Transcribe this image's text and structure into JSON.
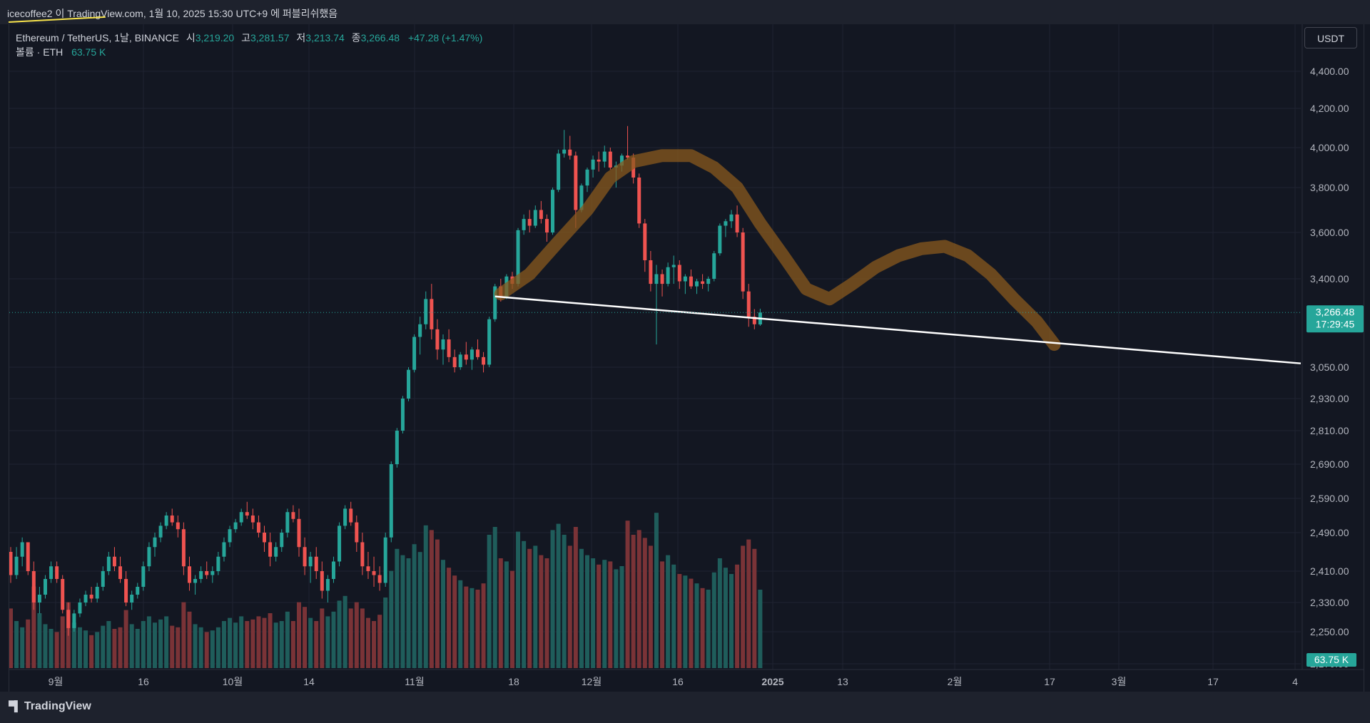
{
  "header": {
    "published_text": "icecoffee2 이 TradingView.com, 1월 10, 2025 15:30 UTC+9 에 퍼블리쉬했음"
  },
  "legend": {
    "symbol": "Ethereum / TetherUS, 1날, BINANCE",
    "open_label": "시",
    "open_value": "3,219.20",
    "high_label": "고",
    "high_value": "3,281.57",
    "low_label": "저",
    "low_value": "3,213.74",
    "close_label": "종",
    "close_value": "3,266.48",
    "change": "+47.28 (+1.47%)",
    "volume_label": "볼륨 · ETH",
    "volume_value": "63.75 K"
  },
  "currency_button": "USDT",
  "footer": {
    "brand": "TradingView"
  },
  "colors": {
    "up": "#26a69a",
    "down": "#ef5350",
    "background": "#131722",
    "grid": "#1f2331",
    "trendline": "#ffffff",
    "pattern": "#8a5a1e"
  },
  "chart_data": {
    "type": "candlestick",
    "price_axis": {
      "ticks": [
        4400,
        4200,
        4000,
        3800,
        3600,
        3400,
        3050,
        2930,
        2810,
        2690,
        2590,
        2490,
        2410,
        2330,
        2250,
        2170
      ],
      "tick_labels": [
        "4,400.00",
        "4,200.00",
        "4,000.00",
        "3,800.00",
        "3,600.00",
        "3,400.00",
        "3,050.00",
        "2,930.00",
        "2,810.00",
        "2,690.00",
        "2,590.00",
        "2,490.00",
        "2,410.00",
        "2,330.00",
        "2,250.00",
        "2,170.00"
      ]
    },
    "last_price": {
      "value": 3266.48,
      "label": "3,266.48",
      "countdown": "17:29:45"
    },
    "volume_badge": "63.75 K",
    "time_axis": {
      "labels": [
        "9월",
        "16",
        "10월",
        "14",
        "11월",
        "18",
        "12월",
        "16",
        "2025",
        "13",
        "2월",
        "17",
        "3월",
        "17",
        "4"
      ],
      "bold": [
        "2025"
      ]
    },
    "candles": [
      [
        2450,
        2460,
        2380,
        2400,
        380
      ],
      [
        2400,
        2460,
        2390,
        2440,
        300
      ],
      [
        2440,
        2480,
        2420,
        2470,
        260
      ],
      [
        2470,
        2470,
        2400,
        2410,
        310
      ],
      [
        2410,
        2430,
        2310,
        2330,
        520
      ],
      [
        2330,
        2370,
        2300,
        2350,
        350
      ],
      [
        2350,
        2400,
        2340,
        2390,
        280
      ],
      [
        2390,
        2430,
        2380,
        2420,
        250
      ],
      [
        2420,
        2430,
        2380,
        2390,
        230
      ],
      [
        2390,
        2400,
        2300,
        2310,
        330
      ],
      [
        2310,
        2330,
        2240,
        2260,
        420
      ],
      [
        2260,
        2310,
        2250,
        2300,
        290
      ],
      [
        2300,
        2340,
        2290,
        2330,
        260
      ],
      [
        2330,
        2360,
        2320,
        2350,
        240
      ],
      [
        2350,
        2370,
        2330,
        2340,
        210
      ],
      [
        2340,
        2380,
        2330,
        2370,
        230
      ],
      [
        2370,
        2420,
        2360,
        2410,
        270
      ],
      [
        2410,
        2450,
        2400,
        2440,
        300
      ],
      [
        2440,
        2460,
        2410,
        2420,
        250
      ],
      [
        2420,
        2440,
        2380,
        2390,
        260
      ],
      [
        2390,
        2410,
        2320,
        2330,
        370
      ],
      [
        2330,
        2360,
        2310,
        2350,
        280
      ],
      [
        2350,
        2380,
        2340,
        2370,
        250
      ],
      [
        2370,
        2430,
        2360,
        2420,
        300
      ],
      [
        2420,
        2470,
        2410,
        2460,
        330
      ],
      [
        2460,
        2490,
        2440,
        2480,
        290
      ],
      [
        2480,
        2520,
        2470,
        2510,
        310
      ],
      [
        2510,
        2550,
        2500,
        2540,
        330
      ],
      [
        2540,
        2560,
        2510,
        2520,
        270
      ],
      [
        2520,
        2540,
        2480,
        2500,
        260
      ],
      [
        2500,
        2520,
        2400,
        2420,
        420
      ],
      [
        2420,
        2440,
        2360,
        2380,
        360
      ],
      [
        2380,
        2400,
        2350,
        2390,
        280
      ],
      [
        2390,
        2420,
        2380,
        2410,
        260
      ],
      [
        2410,
        2430,
        2390,
        2400,
        230
      ],
      [
        2400,
        2420,
        2380,
        2410,
        240
      ],
      [
        2410,
        2450,
        2400,
        2440,
        260
      ],
      [
        2440,
        2480,
        2430,
        2470,
        300
      ],
      [
        2470,
        2510,
        2460,
        2500,
        320
      ],
      [
        2500,
        2530,
        2490,
        2520,
        290
      ],
      [
        2520,
        2560,
        2510,
        2550,
        330
      ],
      [
        2550,
        2580,
        2530,
        2540,
        300
      ],
      [
        2540,
        2560,
        2500,
        2520,
        310
      ],
      [
        2520,
        2540,
        2480,
        2490,
        330
      ],
      [
        2490,
        2510,
        2450,
        2470,
        320
      ],
      [
        2470,
        2490,
        2420,
        2440,
        350
      ],
      [
        2440,
        2470,
        2430,
        2460,
        290
      ],
      [
        2460,
        2500,
        2450,
        2490,
        300
      ],
      [
        2490,
        2560,
        2480,
        2550,
        360
      ],
      [
        2550,
        2570,
        2520,
        2530,
        300
      ],
      [
        2530,
        2560,
        2440,
        2460,
        420
      ],
      [
        2460,
        2480,
        2400,
        2420,
        390
      ],
      [
        2420,
        2450,
        2380,
        2440,
        320
      ],
      [
        2440,
        2460,
        2390,
        2410,
        300
      ],
      [
        2410,
        2430,
        2340,
        2360,
        380
      ],
      [
        2360,
        2400,
        2330,
        2390,
        330
      ],
      [
        2390,
        2440,
        2380,
        2430,
        360
      ],
      [
        2430,
        2520,
        2420,
        2510,
        430
      ],
      [
        2510,
        2570,
        2500,
        2560,
        460
      ],
      [
        2560,
        2580,
        2510,
        2520,
        380
      ],
      [
        2520,
        2540,
        2450,
        2470,
        420
      ],
      [
        2470,
        2490,
        2400,
        2420,
        380
      ],
      [
        2420,
        2450,
        2390,
        2410,
        320
      ],
      [
        2410,
        2440,
        2370,
        2400,
        300
      ],
      [
        2400,
        2420,
        2360,
        2380,
        340
      ],
      [
        2380,
        2490,
        2370,
        2480,
        450
      ],
      [
        2480,
        2700,
        2470,
        2690,
        620
      ],
      [
        2690,
        2820,
        2680,
        2810,
        760
      ],
      [
        2810,
        2940,
        2800,
        2930,
        720
      ],
      [
        2930,
        3050,
        2920,
        3040,
        700
      ],
      [
        3040,
        3180,
        3030,
        3170,
        790
      ],
      [
        3170,
        3250,
        3100,
        3220,
        740
      ],
      [
        3220,
        3350,
        3200,
        3320,
        910
      ],
      [
        3320,
        3380,
        3160,
        3200,
        880
      ],
      [
        3200,
        3240,
        3080,
        3120,
        820
      ],
      [
        3120,
        3180,
        3060,
        3160,
        690
      ],
      [
        3160,
        3200,
        3070,
        3090,
        640
      ],
      [
        3090,
        3120,
        3030,
        3050,
        590
      ],
      [
        3050,
        3110,
        3040,
        3100,
        560
      ],
      [
        3100,
        3150,
        3060,
        3080,
        520
      ],
      [
        3080,
        3130,
        3040,
        3120,
        510
      ],
      [
        3120,
        3160,
        3080,
        3090,
        500
      ],
      [
        3090,
        3110,
        3030,
        3060,
        540
      ],
      [
        3060,
        3250,
        3050,
        3240,
        850
      ],
      [
        3240,
        3380,
        3230,
        3370,
        900
      ],
      [
        3370,
        3400,
        3310,
        3330,
        700
      ],
      [
        3330,
        3420,
        3320,
        3410,
        680
      ],
      [
        3410,
        3430,
        3360,
        3380,
        620
      ],
      [
        3380,
        3620,
        3370,
        3610,
        870
      ],
      [
        3610,
        3680,
        3590,
        3660,
        810
      ],
      [
        3660,
        3700,
        3600,
        3630,
        760
      ],
      [
        3630,
        3720,
        3620,
        3700,
        780
      ],
      [
        3700,
        3740,
        3640,
        3660,
        720
      ],
      [
        3660,
        3680,
        3560,
        3600,
        700
      ],
      [
        3600,
        3800,
        3590,
        3790,
        880
      ],
      [
        3790,
        3990,
        3780,
        3970,
        920
      ],
      [
        3970,
        4090,
        3950,
        3990,
        850
      ],
      [
        3990,
        4060,
        3940,
        3960,
        780
      ],
      [
        3960,
        3980,
        3620,
        3700,
        900
      ],
      [
        3700,
        3820,
        3690,
        3810,
        760
      ],
      [
        3810,
        3900,
        3780,
        3890,
        720
      ],
      [
        3890,
        3960,
        3850,
        3940,
        700
      ],
      [
        3940,
        3980,
        3880,
        3930,
        660
      ],
      [
        3930,
        4010,
        3900,
        3980,
        690
      ],
      [
        3980,
        4000,
        3890,
        3900,
        680
      ],
      [
        3900,
        3930,
        3800,
        3910,
        630
      ],
      [
        3910,
        3970,
        3880,
        3960,
        650
      ],
      [
        3960,
        4110,
        3940,
        3950,
        940
      ],
      [
        3950,
        3970,
        3820,
        3850,
        850
      ],
      [
        3850,
        3870,
        3620,
        3640,
        880
      ],
      [
        3640,
        3660,
        3430,
        3480,
        830
      ],
      [
        3480,
        3520,
        3350,
        3380,
        780
      ],
      [
        3380,
        3460,
        3140,
        3420,
        990
      ],
      [
        3420,
        3440,
        3330,
        3380,
        680
      ],
      [
        3380,
        3470,
        3370,
        3450,
        720
      ],
      [
        3450,
        3500,
        3380,
        3460,
        660
      ],
      [
        3460,
        3480,
        3360,
        3390,
        600
      ],
      [
        3390,
        3420,
        3340,
        3410,
        590
      ],
      [
        3410,
        3440,
        3360,
        3370,
        570
      ],
      [
        3370,
        3400,
        3340,
        3390,
        540
      ],
      [
        3390,
        3420,
        3360,
        3380,
        510
      ],
      [
        3380,
        3410,
        3350,
        3400,
        500
      ],
      [
        3400,
        3520,
        3390,
        3510,
        610
      ],
      [
        3510,
        3640,
        3500,
        3630,
        700
      ],
      [
        3630,
        3660,
        3580,
        3650,
        640
      ],
      [
        3650,
        3700,
        3620,
        3680,
        600
      ],
      [
        3680,
        3720,
        3580,
        3600,
        660
      ],
      [
        3600,
        3620,
        3320,
        3350,
        780
      ],
      [
        3350,
        3380,
        3210,
        3250,
        820
      ],
      [
        3250,
        3280,
        3200,
        3220,
        760
      ],
      [
        3219.2,
        3281.57,
        3213.74,
        3266.48,
        500
      ]
    ],
    "volume_scale": 1000,
    "annotations": [
      {
        "type": "trendline",
        "from": [
          84,
          3330
        ],
        "to": [
          206,
          3065
        ]
      },
      {
        "type": "brush",
        "description": "head and shoulders pattern"
      }
    ]
  }
}
